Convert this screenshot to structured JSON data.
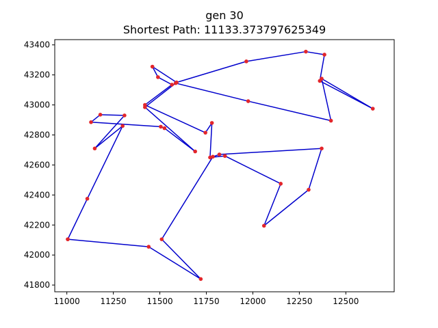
{
  "chart_data": {
    "type": "line",
    "title": "gen 30",
    "subtitle": "Shortest Path: 11133.373797625349",
    "xlabel": "",
    "ylabel": "",
    "xlim": [
      10935,
      12760
    ],
    "ylim": [
      41755,
      43435
    ],
    "xticks": [
      11000,
      11250,
      11500,
      11750,
      12000,
      12250,
      12500
    ],
    "yticks": [
      41800,
      42000,
      42200,
      42400,
      42600,
      42800,
      43000,
      43200,
      43400
    ],
    "grid": false,
    "line_color": "#0000cc",
    "point_color": "#e3262b",
    "path": [
      {
        "x": 11005,
        "y": 42105
      },
      {
        "x": 11440,
        "y": 42055
      },
      {
        "x": 11720,
        "y": 41840
      },
      {
        "x": 11510,
        "y": 42105
      },
      {
        "x": 11785,
        "y": 42655
      },
      {
        "x": 11820,
        "y": 42670
      },
      {
        "x": 12370,
        "y": 42710
      },
      {
        "x": 12300,
        "y": 42435
      },
      {
        "x": 12060,
        "y": 42195
      },
      {
        "x": 12150,
        "y": 42475
      },
      {
        "x": 11850,
        "y": 42660
      },
      {
        "x": 11770,
        "y": 42650
      },
      {
        "x": 11780,
        "y": 42880
      },
      {
        "x": 11745,
        "y": 42815
      },
      {
        "x": 11420,
        "y": 43000
      },
      {
        "x": 11565,
        "y": 43135
      },
      {
        "x": 11490,
        "y": 43185
      },
      {
        "x": 11460,
        "y": 43255
      },
      {
        "x": 11590,
        "y": 43150
      },
      {
        "x": 11965,
        "y": 43290
      },
      {
        "x": 12285,
        "y": 43355
      },
      {
        "x": 12385,
        "y": 43335
      },
      {
        "x": 12360,
        "y": 43160
      },
      {
        "x": 12645,
        "y": 42975
      },
      {
        "x": 12370,
        "y": 43175
      },
      {
        "x": 12420,
        "y": 42895
      },
      {
        "x": 11975,
        "y": 43025
      },
      {
        "x": 11585,
        "y": 43145
      },
      {
        "x": 11420,
        "y": 42985
      },
      {
        "x": 11690,
        "y": 42690
      },
      {
        "x": 11525,
        "y": 42845
      },
      {
        "x": 11505,
        "y": 42855
      },
      {
        "x": 11130,
        "y": 42885
      },
      {
        "x": 11180,
        "y": 42935
      },
      {
        "x": 11310,
        "y": 42930
      },
      {
        "x": 11150,
        "y": 42710
      },
      {
        "x": 11300,
        "y": 42860
      },
      {
        "x": 11110,
        "y": 42375
      },
      {
        "x": 11005,
        "y": 42105
      }
    ]
  }
}
